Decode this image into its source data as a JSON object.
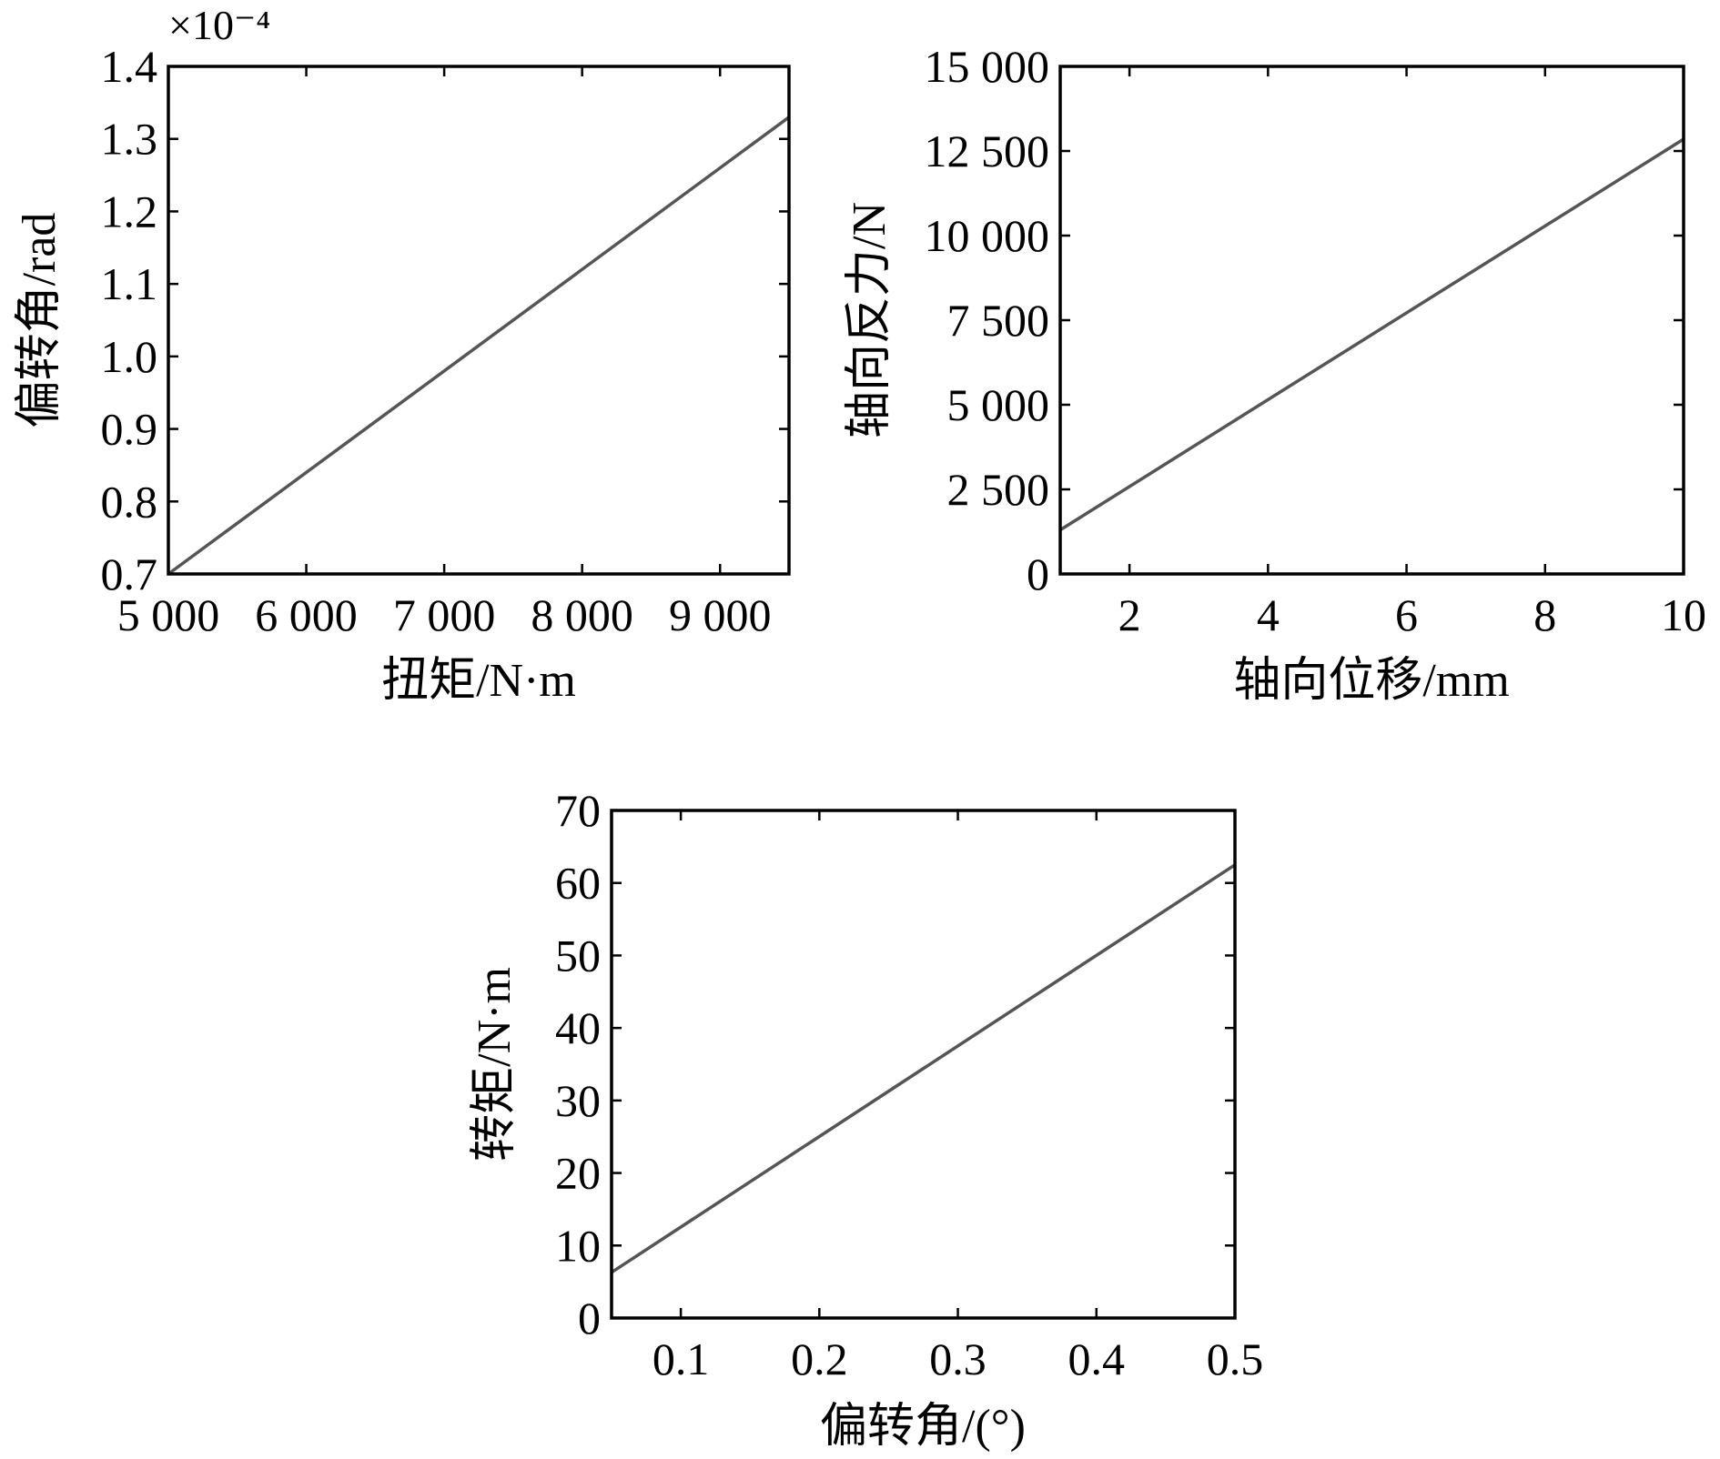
{
  "chart_data": [
    {
      "type": "line",
      "xlabel": "扭矩/N·m",
      "ylabel": "偏转角/rad",
      "y_exponent": "×10⁻⁴",
      "xlim": [
        5000,
        9500
      ],
      "ylim": [
        0.7,
        1.4
      ],
      "xticks": [
        5000,
        6000,
        7000,
        8000,
        9000
      ],
      "xtick_labels": [
        "5 000",
        "6 000",
        "7 000",
        "8 000",
        "9 000"
      ],
      "yticks": [
        0.7,
        0.8,
        0.9,
        1.0,
        1.1,
        1.2,
        1.3,
        1.4
      ],
      "ytick_labels": [
        "0.7",
        "0.8",
        "0.9",
        "1.0",
        "1.1",
        "1.2",
        "1.3",
        "1.4"
      ],
      "grid": false,
      "series": [
        {
          "x": [
            5000,
            9500
          ],
          "y": [
            0.7,
            1.33
          ],
          "color": "#555555"
        }
      ]
    },
    {
      "type": "line",
      "xlabel": "轴向位移/mm",
      "ylabel": "轴向反力/N",
      "xlim": [
        1,
        10
      ],
      "ylim": [
        0,
        15000
      ],
      "xticks": [
        2,
        4,
        6,
        8,
        10
      ],
      "xtick_labels": [
        "2",
        "4",
        "6",
        "8",
        "10"
      ],
      "yticks": [
        0,
        2500,
        5000,
        7500,
        10000,
        12500,
        15000
      ],
      "ytick_labels": [
        "0",
        "2 500",
        "5 000",
        "7 500",
        "10 000",
        "12 500",
        "15 000"
      ],
      "grid": false,
      "series": [
        {
          "x": [
            1,
            10
          ],
          "y": [
            1300,
            12850
          ],
          "color": "#555555"
        }
      ]
    },
    {
      "type": "line",
      "xlabel": "偏转角/(°)",
      "ylabel": "转矩/N·m",
      "xlim": [
        0.05,
        0.5
      ],
      "ylim": [
        0,
        70
      ],
      "xticks": [
        0.1,
        0.2,
        0.3,
        0.4,
        0.5
      ],
      "xtick_labels": [
        "0.1",
        "0.2",
        "0.3",
        "0.4",
        "0.5"
      ],
      "yticks": [
        0,
        10,
        20,
        30,
        40,
        50,
        60,
        70
      ],
      "ytick_labels": [
        "0",
        "10",
        "20",
        "30",
        "40",
        "50",
        "60",
        "70"
      ],
      "grid": false,
      "series": [
        {
          "x": [
            0.05,
            0.5
          ],
          "y": [
            6.3,
            62.5
          ],
          "color": "#555555"
        }
      ]
    }
  ]
}
